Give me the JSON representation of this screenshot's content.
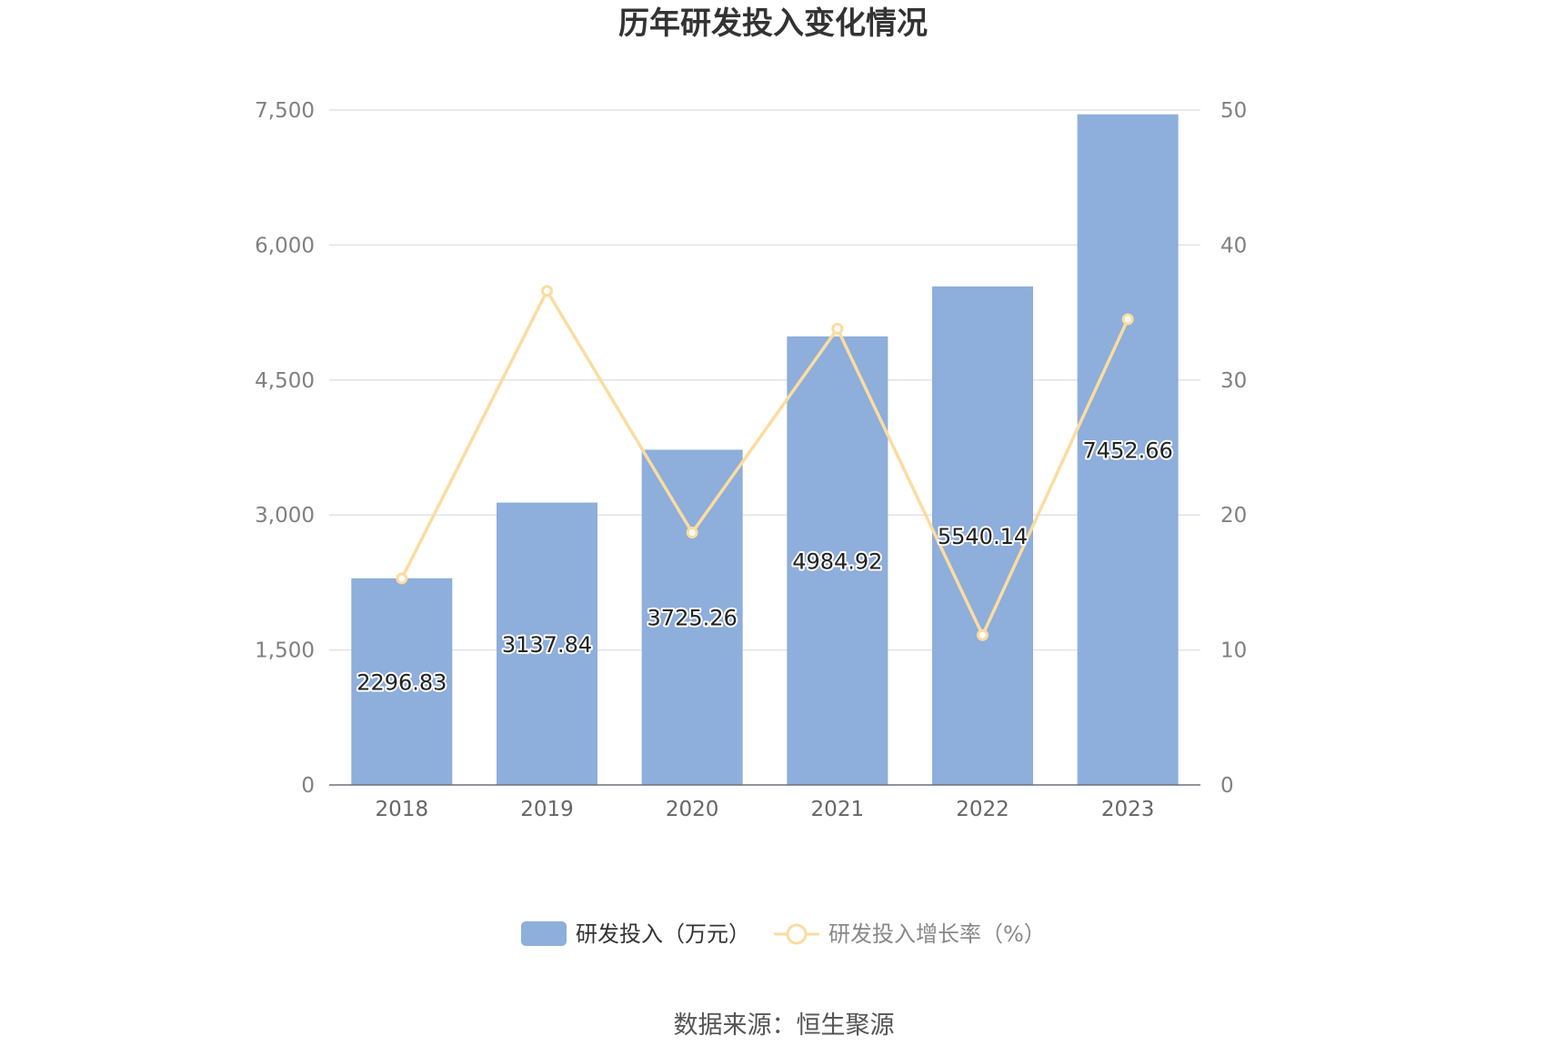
{
  "chart_data": {
    "type": "bar",
    "title": "历年研发投入变化情况",
    "categories": [
      "2018",
      "2019",
      "2020",
      "2021",
      "2022",
      "2023"
    ],
    "series": [
      {
        "name": "研发投入（万元）",
        "type": "bar",
        "axis": "left",
        "values": [
          2296.83,
          3137.84,
          3725.26,
          4984.92,
          5540.14,
          7452.66
        ],
        "labels": [
          "2296.83",
          "3137.84",
          "3725.26",
          "4984.92",
          "5540.14",
          "7452.66"
        ],
        "color": "#8eaedb"
      },
      {
        "name": "研发投入增长率（%）",
        "type": "line",
        "axis": "right",
        "values": [
          15.3,
          36.6,
          18.7,
          33.8,
          11.1,
          34.5
        ],
        "color": "#fbdca0"
      }
    ],
    "y_left": {
      "ylim": [
        0,
        7500
      ],
      "ticks": [
        "0",
        "1,500",
        "3,000",
        "4,500",
        "6,000",
        "7,500"
      ]
    },
    "y_right": {
      "ylim": [
        0,
        50
      ],
      "ticks": [
        "0",
        "10",
        "20",
        "30",
        "40",
        "50"
      ]
    },
    "grid": true,
    "legend_position": "bottom-center"
  },
  "source_text": "数据来源：恒生聚源"
}
